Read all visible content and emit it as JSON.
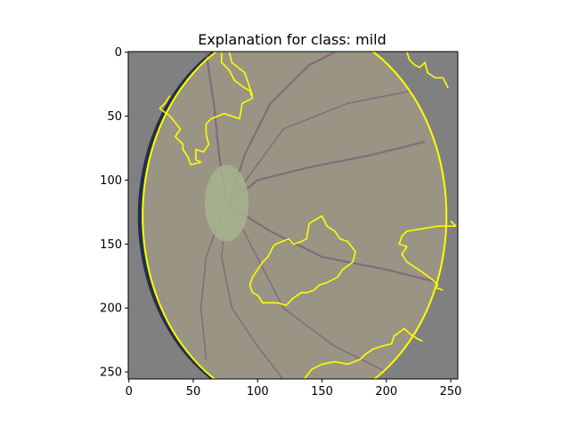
{
  "chart_data": {
    "type": "heatmap",
    "title": "Explanation for class: mild",
    "xlabel": "",
    "ylabel": "",
    "xlim": [
      0,
      255
    ],
    "ylim": [
      0,
      255
    ],
    "y_inverted": true,
    "grid": false,
    "x_ticks": [
      0,
      50,
      100,
      150,
      200,
      250
    ],
    "y_ticks": [
      0,
      50,
      100,
      150,
      200,
      250
    ],
    "colors": {
      "background": "#808080",
      "retina": "#9a9484",
      "optic_disc": "#a8b48e",
      "vessel": "#7a5e72",
      "boundary": "#ffff00"
    },
    "optic_disc": {
      "cx": 76,
      "cy": 118,
      "rx": 17,
      "ry": 30
    },
    "segment_boundaries": [
      {
        "points": [
          [
            72,
            0
          ],
          [
            72,
            8
          ],
          [
            78,
            14
          ],
          [
            82,
            22
          ],
          [
            90,
            28
          ],
          [
            94,
            30
          ],
          [
            96,
            36
          ],
          [
            88,
            40
          ],
          [
            86,
            52
          ],
          [
            74,
            48
          ],
          [
            64,
            52
          ],
          [
            60,
            56
          ],
          [
            60,
            64
          ],
          [
            62,
            72
          ],
          [
            58,
            78
          ],
          [
            52,
            76
          ],
          [
            52,
            84
          ],
          [
            56,
            86
          ],
          [
            48,
            88
          ],
          [
            46,
            82
          ],
          [
            42,
            76
          ],
          [
            42,
            72
          ],
          [
            36,
            66
          ],
          [
            40,
            60
          ],
          [
            32,
            50
          ],
          [
            24,
            44
          ],
          [
            28,
            40
          ],
          [
            32,
            34
          ]
        ]
      },
      {
        "points": [
          [
            78,
            0
          ],
          [
            80,
            8
          ],
          [
            90,
            16
          ],
          [
            94,
            28
          ],
          [
            96,
            34
          ]
        ]
      },
      {
        "points": [
          [
            216,
            0
          ],
          [
            218,
            6
          ],
          [
            222,
            10
          ],
          [
            226,
            12
          ],
          [
            230,
            8
          ],
          [
            232,
            16
          ],
          [
            238,
            20
          ],
          [
            244,
            20
          ],
          [
            248,
            28
          ]
        ]
      },
      {
        "points": [
          [
            140,
            134
          ],
          [
            150,
            128
          ],
          [
            154,
            136
          ],
          [
            160,
            140
          ],
          [
            164,
            146
          ],
          [
            170,
            148
          ],
          [
            176,
            156
          ],
          [
            174,
            164
          ],
          [
            166,
            170
          ],
          [
            162,
            176
          ],
          [
            154,
            180
          ],
          [
            148,
            182
          ],
          [
            144,
            186
          ],
          [
            138,
            188
          ],
          [
            134,
            188
          ],
          [
            128,
            192
          ],
          [
            122,
            198
          ],
          [
            116,
            196
          ],
          [
            104,
            196
          ],
          [
            100,
            190
          ],
          [
            96,
            188
          ],
          [
            94,
            182
          ],
          [
            96,
            176
          ],
          [
            100,
            170
          ],
          [
            104,
            164
          ],
          [
            108,
            160
          ],
          [
            112,
            152
          ],
          [
            114,
            150
          ],
          [
            124,
            146
          ],
          [
            128,
            150
          ],
          [
            134,
            148
          ],
          [
            138,
            146
          ],
          [
            140,
            134
          ]
        ]
      },
      {
        "points": [
          [
            250,
            132
          ],
          [
            254,
            136
          ],
          [
            240,
            136
          ],
          [
            228,
            138
          ],
          [
            216,
            140
          ],
          [
            212,
            144
          ],
          [
            210,
            150
          ],
          [
            216,
            152
          ],
          [
            212,
            158
          ],
          [
            216,
            164
          ],
          [
            222,
            168
          ],
          [
            228,
            172
          ],
          [
            236,
            178
          ],
          [
            240,
            182
          ],
          [
            238,
            184
          ],
          [
            244,
            186
          ]
        ]
      },
      {
        "points": [
          [
            136,
            256
          ],
          [
            142,
            248
          ],
          [
            150,
            244
          ],
          [
            160,
            242
          ],
          [
            170,
            244
          ],
          [
            180,
            240
          ],
          [
            184,
            236
          ],
          [
            190,
            232
          ],
          [
            196,
            230
          ],
          [
            204,
            228
          ],
          [
            206,
            222
          ],
          [
            214,
            216
          ],
          [
            218,
            220
          ],
          [
            224,
            224
          ],
          [
            228,
            226
          ]
        ]
      }
    ]
  }
}
